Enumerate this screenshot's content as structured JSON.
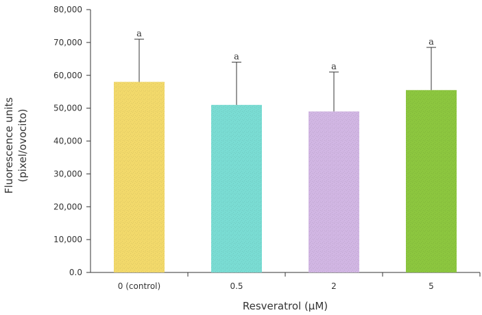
{
  "chart_data": {
    "type": "bar",
    "title": "",
    "xlabel": "Resveratrol (μM)",
    "ylabel_lines": [
      "Fluorescence units",
      "(pixel/ovocito)"
    ],
    "categories": [
      "0 (control)",
      "0.5",
      "2",
      "5"
    ],
    "values": [
      58000,
      51000,
      49000,
      55500
    ],
    "errors": [
      13000,
      13000,
      12000,
      13000
    ],
    "significance": [
      "a",
      "a",
      "a",
      "a"
    ],
    "colors": [
      "#f2d96b",
      "#7adcd3",
      "#d1b6e3",
      "#8cc63f"
    ],
    "ylim": [
      0,
      80000
    ],
    "yticks": [
      0,
      10000,
      20000,
      30000,
      40000,
      50000,
      60000,
      70000,
      80000
    ],
    "ytick_labels": [
      "0.0",
      "10,000",
      "20,000",
      "30,000",
      "40,000",
      "50,000",
      "60,000",
      "70,000",
      "80,000"
    ],
    "grid": false,
    "legend": "none"
  }
}
